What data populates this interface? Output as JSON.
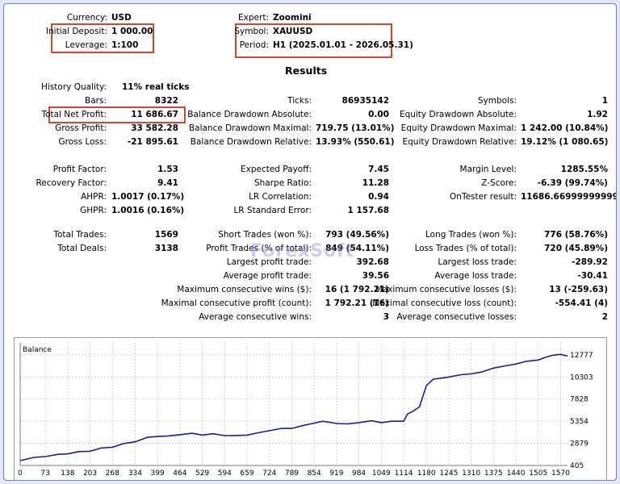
{
  "header": {
    "currency": {
      "label": "Currency:",
      "value": "USD"
    },
    "initial_deposit": {
      "label": "Initial Deposit:",
      "value": "1 000.00"
    },
    "leverage": {
      "label": "Leverage:",
      "value": "1:100"
    },
    "expert": {
      "label": "Expert:",
      "value": "Zoomini"
    },
    "symbol": {
      "label": "Symbol:",
      "value": "XAUUSD"
    },
    "period": {
      "label": "Period:",
      "value": "H1 (2025.01.01 - 2026.05.31)"
    }
  },
  "results_heading": "Results",
  "history_quality": {
    "label": "History Quality:",
    "value": "11% real ticks"
  },
  "col1": [
    {
      "label": "Bars:",
      "value": "8322"
    },
    {
      "label": "Total Net Profit:",
      "value": "11 686.67"
    },
    {
      "label": "Gross Profit:",
      "value": "33 582.28"
    },
    {
      "label": "Gross Loss:",
      "value": "-21 895.61"
    },
    {
      "label": "Profit Factor:",
      "value": "1.53"
    },
    {
      "label": "Recovery Factor:",
      "value": "9.41"
    },
    {
      "label": "AHPR:",
      "value": "1.0017 (0.17%)"
    },
    {
      "label": "GHPR:",
      "value": "1.0016 (0.16%)"
    },
    {
      "label": "Total Trades:",
      "value": "1569"
    },
    {
      "label": "Total Deals:",
      "value": "3138"
    }
  ],
  "col2": [
    {
      "label": "Ticks:",
      "value": "86935142"
    },
    {
      "label": "Balance Drawdown Absolute:",
      "value": "0.00"
    },
    {
      "label": "Balance Drawdown Maximal:",
      "value": "719.75 (13.01%)"
    },
    {
      "label": "Balance Drawdown Relative:",
      "value": "13.93% (550.61)"
    },
    {
      "label": "Expected Payoff:",
      "value": "7.45"
    },
    {
      "label": "Sharpe Ratio:",
      "value": "11.28"
    },
    {
      "label": "LR Correlation:",
      "value": "0.94"
    },
    {
      "label": "LR Standard Error:",
      "value": "1 157.68"
    },
    {
      "label": "Short Trades (won %):",
      "value": "793 (49.56%)"
    },
    {
      "label": "Profit Trades (% of total):",
      "value": "849 (54.11%)"
    },
    {
      "label": "Largest profit trade:",
      "value": "392.68"
    },
    {
      "label": "Average profit trade:",
      "value": "39.56"
    },
    {
      "label": "Maximum consecutive wins ($):",
      "value": "16 (1 792.21)"
    },
    {
      "label": "Maximal consecutive profit (count):",
      "value": "1 792.21 (16)"
    },
    {
      "label": "Average consecutive wins:",
      "value": "3"
    }
  ],
  "col3": [
    {
      "label": "Symbols:",
      "value": "1"
    },
    {
      "label": "Equity Drawdown Absolute:",
      "value": "1.92"
    },
    {
      "label": "Equity Drawdown Maximal:",
      "value": "1 242.00 (10.84%)"
    },
    {
      "label": "Equity Drawdown Relative:",
      "value": "19.12% (1 080.65)"
    },
    {
      "label": "Margin Level:",
      "value": "1285.55%"
    },
    {
      "label": "Z-Score:",
      "value": "-6.39 (99.74%)"
    },
    {
      "label": "OnTester result:",
      "value": "11686.66999999999"
    },
    {
      "label": "Long Trades (won %):",
      "value": "776 (58.76%)"
    },
    {
      "label": "Loss Trades (% of total):",
      "value": "720 (45.89%)"
    },
    {
      "label": "Largest loss trade:",
      "value": "-289.92"
    },
    {
      "label": "Average loss trade:",
      "value": "-30.41"
    },
    {
      "label": "Maximum consecutive losses ($):",
      "value": "13 (-259.63)"
    },
    {
      "label": "Maximal consecutive loss (count):",
      "value": "-554.41 (4)"
    },
    {
      "label": "Average consecutive losses:",
      "value": "2"
    }
  ],
  "watermark": "ForexSoft",
  "colors": {
    "highlight_box": "#d9432b",
    "line": "#1a1aa6",
    "frame": "#6b7de0"
  },
  "chart_data": {
    "type": "line",
    "title": "Balance",
    "xlabel": "",
    "ylabel": "",
    "x_ticks": [
      "0",
      "73",
      "138",
      "203",
      "268",
      "334",
      "399",
      "464",
      "529",
      "594",
      "659",
      "724",
      "789",
      "854",
      "919",
      "984",
      "1049",
      "1114",
      "1180",
      "1245",
      "1310",
      "1375",
      "1440",
      "1505",
      "1570"
    ],
    "y_ticks": [
      "405",
      "2879",
      "5354",
      "7828",
      "10303",
      "12777"
    ],
    "xlim": [
      0,
      1590
    ],
    "ylim": [
      405,
      13400
    ],
    "series": [
      {
        "x": [
          0,
          40,
          73,
          110,
          138,
          170,
          203,
          235,
          268,
          300,
          334,
          370,
          399,
          430,
          464,
          500,
          529,
          560,
          594,
          620,
          659,
          690,
          724,
          760,
          789,
          820,
          854,
          880,
          919,
          950,
          984,
          1020,
          1049,
          1080,
          1114,
          1125,
          1140,
          1160,
          1180,
          1200,
          1245,
          1280,
          1310,
          1340,
          1375,
          1410,
          1440,
          1470,
          1505,
          1530,
          1550,
          1570,
          1590
        ],
        "y": [
          1000,
          1250,
          1450,
          1600,
          1750,
          1900,
          2050,
          2300,
          2500,
          2800,
          3100,
          3500,
          3700,
          3650,
          3900,
          3950,
          3850,
          3900,
          3800,
          3700,
          3850,
          4000,
          4350,
          4500,
          4600,
          4800,
          5200,
          5300,
          5150,
          5000,
          5250,
          5350,
          5250,
          5300,
          5400,
          6100,
          6500,
          6900,
          9400,
          10000,
          10350,
          10500,
          10700,
          10800,
          11350,
          11500,
          11800,
          12000,
          12250,
          12500,
          12800,
          12777,
          12700
        ]
      }
    ]
  }
}
